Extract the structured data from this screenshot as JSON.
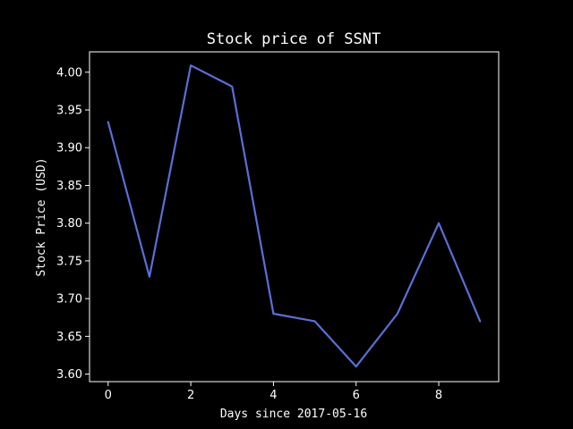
{
  "chart_data": {
    "type": "line",
    "title": "Stock price of SSNT",
    "xlabel": "Days since 2017-05-16",
    "ylabel": "Stock Price (USD)",
    "x": [
      0,
      1,
      2,
      3,
      4,
      5,
      6,
      7,
      8,
      9
    ],
    "series": [
      {
        "values": [
          3.934,
          3.729,
          4.009,
          3.981,
          3.68,
          3.67,
          3.61,
          3.68,
          3.8,
          3.67
        ],
        "color": "#5a6fd6"
      }
    ],
    "xlim": [
      -0.45,
      9.45
    ],
    "ylim": [
      3.59,
      4.027
    ],
    "xticks": [
      0,
      2,
      4,
      6,
      8
    ],
    "xtick_labels": [
      "0",
      "2",
      "4",
      "6",
      "8"
    ],
    "yticks": [
      3.6,
      3.65,
      3.7,
      3.75,
      3.8,
      3.85,
      3.9,
      3.95,
      4.0
    ],
    "ytick_labels": [
      "3.60",
      "3.65",
      "3.70",
      "3.75",
      "3.80",
      "3.85",
      "3.90",
      "3.95",
      "4.00"
    ],
    "grid": false,
    "background": "#000000",
    "foreground": "#ffffff"
  }
}
